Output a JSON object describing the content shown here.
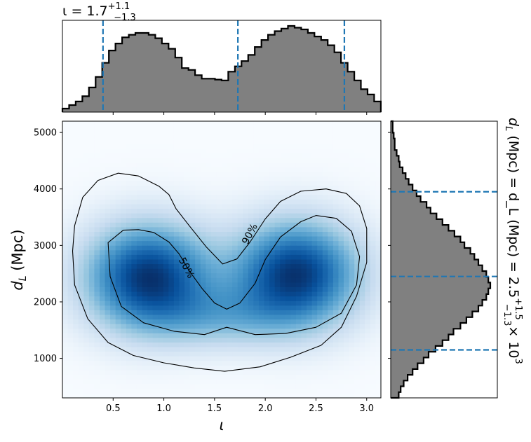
{
  "chart_data": [
    {
      "panel": "joint",
      "type": "heatmap",
      "xlabel": "ι",
      "ylabel": "d_L (Mpc)",
      "xlim": [
        0.0,
        3.14
      ],
      "ylim": [
        300,
        5200
      ],
      "x_ticks": [
        "0.5",
        "1.0",
        "1.5",
        "2.0",
        "2.5",
        "3.0"
      ],
      "x_tick_values": [
        0.5,
        1.0,
        1.5,
        2.0,
        2.5,
        3.0
      ],
      "y_ticks": [
        "1000",
        "2000",
        "3000",
        "4000",
        "5000"
      ],
      "y_tick_values": [
        1000,
        2000,
        3000,
        4000,
        5000
      ],
      "colormap": "Blues",
      "density_modes": [
        {
          "x": 0.85,
          "y": 2450,
          "weight": 1.0
        },
        {
          "x": 2.3,
          "y": 2500,
          "weight": 1.0
        }
      ],
      "contour_labels": [
        "50%",
        "90%"
      ],
      "contours": [
        {
          "label": "50%",
          "points": [
            [
              0.45,
              3050
            ],
            [
              0.6,
              3270
            ],
            [
              0.75,
              3280
            ],
            [
              0.9,
              3230
            ],
            [
              1.05,
              3060
            ],
            [
              1.15,
              2850
            ],
            [
              1.25,
              2550
            ],
            [
              1.38,
              2230
            ],
            [
              1.5,
              1980
            ],
            [
              1.62,
              1870
            ],
            [
              1.75,
              1980
            ],
            [
              1.9,
              2330
            ],
            [
              2.0,
              2750
            ],
            [
              2.15,
              3150
            ],
            [
              2.35,
              3420
            ],
            [
              2.5,
              3530
            ],
            [
              2.7,
              3480
            ],
            [
              2.85,
              3250
            ],
            [
              2.93,
              2800
            ],
            [
              2.9,
              2300
            ],
            [
              2.75,
              1800
            ],
            [
              2.5,
              1550
            ],
            [
              2.2,
              1440
            ],
            [
              1.9,
              1420
            ],
            [
              1.62,
              1550
            ],
            [
              1.4,
              1420
            ],
            [
              1.1,
              1480
            ],
            [
              0.8,
              1630
            ],
            [
              0.58,
              1920
            ],
            [
              0.47,
              2450
            ],
            [
              0.45,
              3050
            ]
          ]
        },
        {
          "label": "90%",
          "points": [
            [
              0.12,
              3350
            ],
            [
              0.2,
              3850
            ],
            [
              0.35,
              4150
            ],
            [
              0.55,
              4280
            ],
            [
              0.75,
              4230
            ],
            [
              0.95,
              4050
            ],
            [
              1.05,
              3900
            ],
            [
              1.12,
              3650
            ],
            [
              1.25,
              3350
            ],
            [
              1.42,
              2970
            ],
            [
              1.58,
              2670
            ],
            [
              1.72,
              2760
            ],
            [
              1.85,
              3060
            ],
            [
              2.0,
              3470
            ],
            [
              2.15,
              3780
            ],
            [
              2.35,
              3960
            ],
            [
              2.6,
              4000
            ],
            [
              2.8,
              3920
            ],
            [
              2.93,
              3700
            ],
            [
              3.0,
              3300
            ],
            [
              3.0,
              2700
            ],
            [
              2.9,
              2100
            ],
            [
              2.75,
              1550
            ],
            [
              2.55,
              1230
            ],
            [
              2.25,
              1020
            ],
            [
              1.95,
              850
            ],
            [
              1.6,
              770
            ],
            [
              1.3,
              830
            ],
            [
              1.0,
              920
            ],
            [
              0.7,
              1050
            ],
            [
              0.45,
              1280
            ],
            [
              0.25,
              1700
            ],
            [
              0.12,
              2300
            ],
            [
              0.1,
              2900
            ],
            [
              0.12,
              3350
            ]
          ]
        }
      ]
    },
    {
      "panel": "top-marginal",
      "type": "bar",
      "title": "ι = 1.7",
      "title_sup": "+1.1",
      "title_sub": "−1.3",
      "x_start": 0.0,
      "bin_width": 0.0654,
      "xlim": [
        0.0,
        3.14
      ],
      "values": [
        0.04,
        0.08,
        0.12,
        0.18,
        0.28,
        0.4,
        0.56,
        0.7,
        0.78,
        0.85,
        0.88,
        0.9,
        0.9,
        0.88,
        0.84,
        0.78,
        0.72,
        0.62,
        0.5,
        0.48,
        0.42,
        0.38,
        0.38,
        0.37,
        0.36,
        0.46,
        0.52,
        0.58,
        0.65,
        0.74,
        0.82,
        0.88,
        0.92,
        0.95,
        0.98,
        0.96,
        0.94,
        0.9,
        0.86,
        0.82,
        0.76,
        0.68,
        0.56,
        0.46,
        0.36,
        0.26,
        0.2,
        0.12
      ],
      "quantile_lines": [
        0.4,
        1.73,
        2.78
      ],
      "line_color": "#1f77b4",
      "fill_color": "#808080"
    },
    {
      "panel": "right-marginal",
      "type": "bar",
      "orientation": "horizontal",
      "annotation_main": "d_L (Mpc) = 2.5",
      "annotation_sup": "+1.5",
      "annotation_sub": "−1.3",
      "annotation_tail": "× 10",
      "annotation_exp": "3",
      "y_start": 300,
      "bin_width": 102.08,
      "ylim": [
        300,
        5200
      ],
      "values": [
        0.08,
        0.1,
        0.13,
        0.17,
        0.22,
        0.27,
        0.33,
        0.38,
        0.45,
        0.52,
        0.58,
        0.63,
        0.7,
        0.76,
        0.82,
        0.88,
        0.92,
        0.96,
        0.98,
        1.0,
        0.98,
        0.96,
        0.92,
        0.88,
        0.84,
        0.8,
        0.74,
        0.7,
        0.64,
        0.58,
        0.52,
        0.46,
        0.4,
        0.36,
        0.3,
        0.26,
        0.22,
        0.18,
        0.15,
        0.12,
        0.09,
        0.08,
        0.06,
        0.04,
        0.04,
        0.03,
        0.02,
        0.02
      ],
      "quantile_lines": [
        1150,
        2450,
        3950
      ],
      "line_color": "#1f77b4",
      "fill_color": "#808080"
    }
  ]
}
